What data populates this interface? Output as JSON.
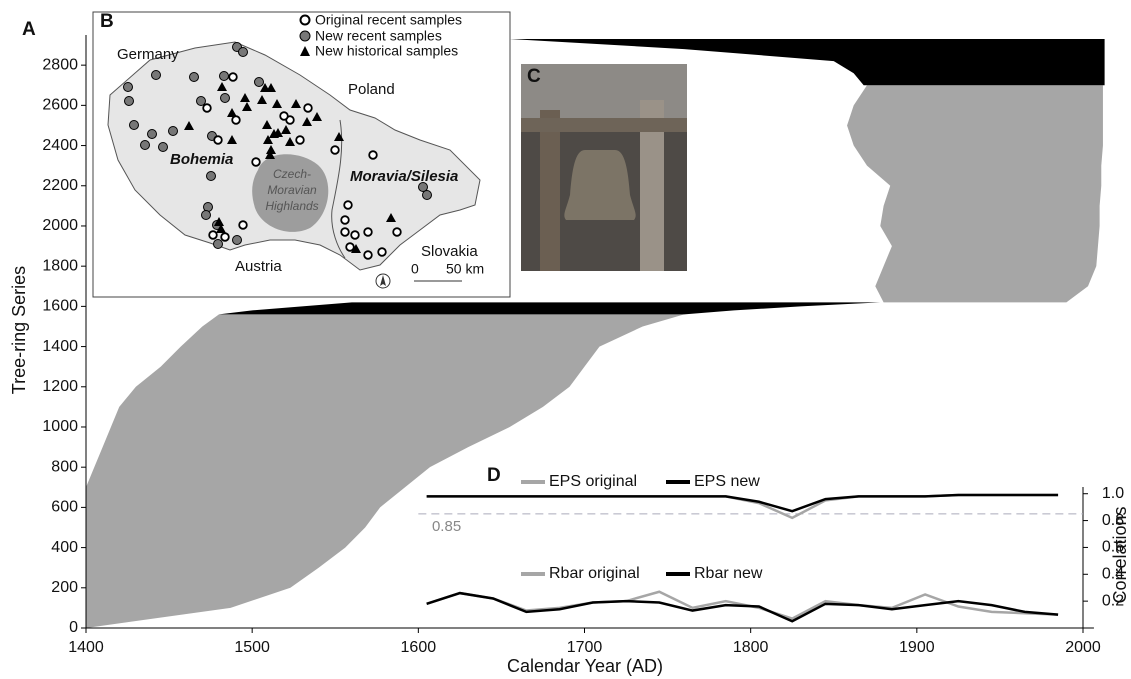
{
  "chart_data": {
    "type": "range",
    "panel_label": "A",
    "xlabel": "Calendar Year (AD)",
    "ylabel": "Tree-ring Series",
    "xlim": [
      1400,
      2015
    ],
    "ylim": [
      0,
      2950
    ],
    "xticks": [
      1400,
      1500,
      1600,
      1700,
      1800,
      1900,
      2000
    ],
    "yticks": [
      0,
      200,
      400,
      600,
      800,
      1000,
      1200,
      1400,
      1600,
      1800,
      2000,
      2200,
      2400,
      2600,
      2800
    ],
    "blocks": [
      {
        "color": "#a6a6a6",
        "index": [
          0,
          100,
          200,
          300,
          400,
          500,
          600,
          700,
          800,
          900,
          1000,
          1100,
          1200,
          1300,
          1400,
          1500,
          1560
        ],
        "start": [
          1400,
          1400,
          1400,
          1400,
          1400,
          1400,
          1400,
          1400,
          1405,
          1410,
          1415,
          1420,
          1430,
          1445,
          1457,
          1470,
          1480
        ],
        "end": [
          1400,
          1487,
          1523,
          1540,
          1556,
          1568,
          1577,
          1592,
          1607,
          1630,
          1655,
          1675,
          1691,
          1700,
          1709,
          1735,
          1760
        ]
      },
      {
        "color": "#a6a6a6",
        "index": [
          1620,
          1700,
          1800,
          1900,
          2000,
          2100,
          2200,
          2300,
          2400,
          2500,
          2600,
          2700
        ],
        "start": [
          1880,
          1875,
          1880,
          1885,
          1878,
          1880,
          1884,
          1870,
          1862,
          1858,
          1862,
          1870
        ],
        "end": [
          1990,
          2003,
          2008,
          2009,
          2010,
          2010,
          2011,
          2011,
          2012,
          2012,
          2012,
          2012
        ]
      },
      {
        "color": "#000000",
        "index": [
          1560,
          1580,
          1600,
          1620
        ],
        "start": [
          1480,
          1500,
          1530,
          1560
        ],
        "end": [
          1760,
          1790,
          1830,
          1878
        ]
      },
      {
        "color": "#000000",
        "index": [
          2700,
          2760,
          2820,
          2880,
          2930
        ],
        "start": [
          1868,
          1862,
          1850,
          1760,
          1655
        ],
        "end": [
          2013,
          2013,
          2013,
          2013,
          2013
        ]
      }
    ],
    "inset": {
      "type": "line",
      "panel_label": "D",
      "y2label": "Correlations",
      "y2lim": [
        0,
        1.05
      ],
      "y2ticks": [
        0.2,
        0.4,
        0.6,
        0.8,
        {
          "value": 1,
          "label": "1.0"
        }
      ],
      "threshold": {
        "value": 0.85,
        "label": "0.85"
      },
      "x": [
        1605,
        1625,
        1645,
        1665,
        1685,
        1705,
        1725,
        1745,
        1765,
        1785,
        1805,
        1825,
        1845,
        1865,
        1885,
        1905,
        1925,
        1945,
        1965,
        1985
      ],
      "series": [
        {
          "name": "EPS original",
          "color": "#a6a6a6",
          "values": [
            0.98,
            0.98,
            0.98,
            0.98,
            0.98,
            0.98,
            0.98,
            0.98,
            0.98,
            0.98,
            0.93,
            0.82,
            0.95,
            0.98,
            0.98,
            0.98,
            0.99,
            0.99,
            0.99,
            0.99
          ]
        },
        {
          "name": "EPS new",
          "color": "#000000",
          "values": [
            0.98,
            0.98,
            0.98,
            0.98,
            0.98,
            0.98,
            0.98,
            0.98,
            0.98,
            0.98,
            0.94,
            0.87,
            0.96,
            0.98,
            0.98,
            0.98,
            0.99,
            0.99,
            0.99,
            0.99
          ]
        },
        {
          "name": "Rbar original",
          "color": "#a6a6a6",
          "values": [
            0.18,
            0.26,
            0.22,
            0.13,
            0.15,
            0.19,
            0.2,
            0.27,
            0.15,
            0.2,
            0.15,
            0.07,
            0.2,
            0.17,
            0.15,
            0.25,
            0.16,
            0.12,
            0.11,
            0.1
          ]
        },
        {
          "name": "Rbar new",
          "color": "#000000",
          "values": [
            0.18,
            0.26,
            0.22,
            0.12,
            0.14,
            0.19,
            0.2,
            0.19,
            0.13,
            0.17,
            0.16,
            0.05,
            0.18,
            0.17,
            0.14,
            0.17,
            0.2,
            0.17,
            0.12,
            0.1
          ]
        }
      ]
    }
  },
  "map": {
    "panel_label": "B",
    "legend": [
      "Original recent samples",
      "New recent samples",
      "New historical samples"
    ],
    "labels": [
      "Germany",
      "Poland",
      "Austria",
      "Slovakia"
    ],
    "regions": [
      "Bohemia",
      "Moravia/Silesia"
    ],
    "highlands": [
      "Czech-",
      "Moravian",
      "Highlands"
    ],
    "scale": [
      "0",
      "50 km"
    ]
  },
  "photo": {
    "panel_label": "C"
  }
}
